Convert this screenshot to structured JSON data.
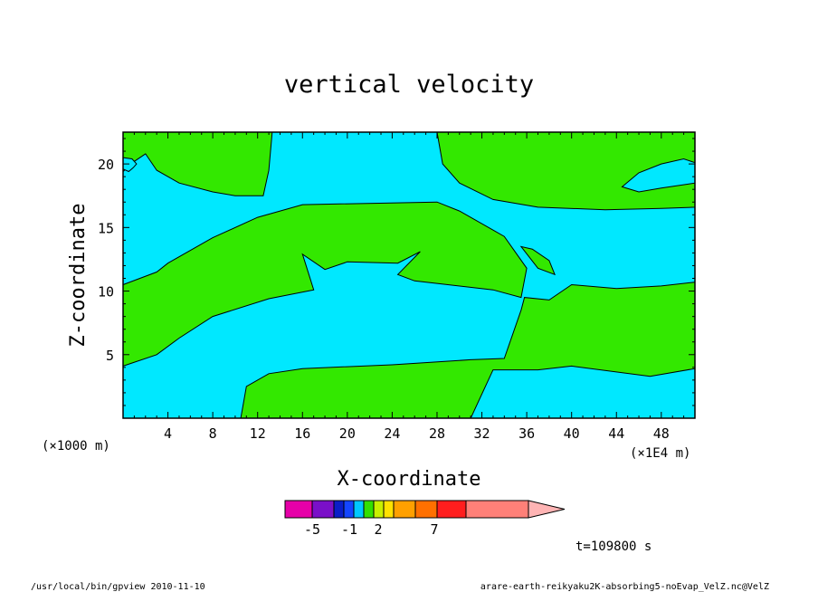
{
  "title": "vertical velocity",
  "footer": {
    "left": "/usr/local/bin/gpview  2010-11-10",
    "right": "arare-earth-reikyaku2K-absorbing5-noEvap_VelZ.nc@VelZ"
  },
  "time_label": "t=109800 s",
  "chart_data": {
    "type": "heatmap",
    "title": "vertical velocity",
    "xlabel": "X-coordinate",
    "ylabel": "Z-coordinate",
    "x_unit_label": "(×1E4 m)",
    "y_unit_label": "(×1000 m)",
    "xlim": [
      0,
      51
    ],
    "ylim": [
      0,
      22.5
    ],
    "x_ticks": [
      4,
      8,
      12,
      16,
      20,
      24,
      28,
      32,
      36,
      40,
      44,
      48
    ],
    "y_ticks": [
      5,
      10,
      15,
      20
    ],
    "colors": {
      "negative_small": "#00e8ff",
      "positive_small": "#33e800"
    },
    "regions": [
      {
        "level": "positive_small",
        "points": [
          [
            0,
            10.5
          ],
          [
            3,
            11.5
          ],
          [
            4,
            12.2
          ],
          [
            8,
            14.2
          ],
          [
            12,
            15.8
          ],
          [
            16,
            16.8
          ],
          [
            28,
            17.0
          ],
          [
            30,
            16.3
          ],
          [
            34,
            14.3
          ],
          [
            36,
            11.8
          ],
          [
            35.5,
            9.5
          ],
          [
            33,
            10.1
          ],
          [
            26,
            10.8
          ],
          [
            24.5,
            11.3
          ],
          [
            26.5,
            13.1
          ],
          [
            24.5,
            12.2
          ],
          [
            20,
            12.3
          ],
          [
            18,
            11.7
          ],
          [
            16,
            12.9
          ],
          [
            17,
            10.1
          ],
          [
            13,
            9.4
          ],
          [
            8,
            8.0
          ],
          [
            5,
            6.3
          ],
          [
            3,
            5.0
          ],
          [
            0,
            4.1
          ]
        ]
      },
      {
        "level": "positive_small",
        "points": [
          [
            10.5,
            0
          ],
          [
            11,
            2.5
          ],
          [
            13,
            3.5
          ],
          [
            16,
            3.9
          ],
          [
            24,
            4.2
          ],
          [
            31,
            4.6
          ],
          [
            34,
            4.7
          ],
          [
            35.5,
            8.5
          ],
          [
            35.8,
            9.5
          ],
          [
            38,
            9.3
          ],
          [
            40,
            10.5
          ],
          [
            44,
            10.2
          ],
          [
            48,
            10.4
          ],
          [
            51,
            10.7
          ],
          [
            51,
            3.9
          ],
          [
            47,
            3.3
          ],
          [
            40,
            4.1
          ],
          [
            37,
            3.8
          ],
          [
            33,
            3.8
          ],
          [
            31,
            0
          ]
        ]
      },
      {
        "level": "positive_small",
        "points": [
          [
            0,
            22.5
          ],
          [
            0,
            19.4
          ],
          [
            1,
            20.2
          ],
          [
            2,
            20.8
          ],
          [
            3,
            19.5
          ],
          [
            5,
            18.5
          ],
          [
            8,
            17.8
          ],
          [
            10,
            17.5
          ],
          [
            12.5,
            17.5
          ],
          [
            13,
            19.5
          ],
          [
            13.3,
            22.5
          ]
        ]
      },
      {
        "level": "positive_small",
        "points": [
          [
            28,
            22.5
          ],
          [
            28.5,
            20
          ],
          [
            30,
            18.5
          ],
          [
            33,
            17.2
          ],
          [
            37,
            16.6
          ],
          [
            43,
            16.4
          ],
          [
            48,
            16.5
          ],
          [
            51,
            16.6
          ],
          [
            51,
            22.5
          ]
        ]
      },
      {
        "level": "negative_small",
        "points": [
          [
            44.5,
            18.2
          ],
          [
            46,
            19.3
          ],
          [
            48,
            20.0
          ],
          [
            50,
            20.4
          ],
          [
            51,
            20.1
          ],
          [
            51,
            18.5
          ],
          [
            48,
            18.1
          ],
          [
            46,
            17.8
          ]
        ]
      },
      {
        "level": "negative_small",
        "points": [
          [
            0,
            19.6
          ],
          [
            0.5,
            19.4
          ],
          [
            0.9,
            19.7
          ],
          [
            1.2,
            20.0
          ],
          [
            0.8,
            20.4
          ],
          [
            0,
            20.5
          ]
        ]
      },
      {
        "level": "positive_small",
        "points": [
          [
            35.5,
            13.5
          ],
          [
            37,
            11.8
          ],
          [
            38.5,
            11.3
          ],
          [
            38,
            12.4
          ],
          [
            36.5,
            13.3
          ]
        ]
      }
    ],
    "colorbar": {
      "colors": [
        "#e600a8",
        "#7a10c8",
        "#0a1ec8",
        "#1446ff",
        "#00c8ff",
        "#33e000",
        "#c8f000",
        "#ffe100",
        "#ffa000",
        "#ff7000",
        "#ff1e1e",
        "#ff8078",
        "#ffb4b4"
      ],
      "tick_labels": [
        "-5",
        "-1",
        "2",
        "7"
      ]
    }
  }
}
